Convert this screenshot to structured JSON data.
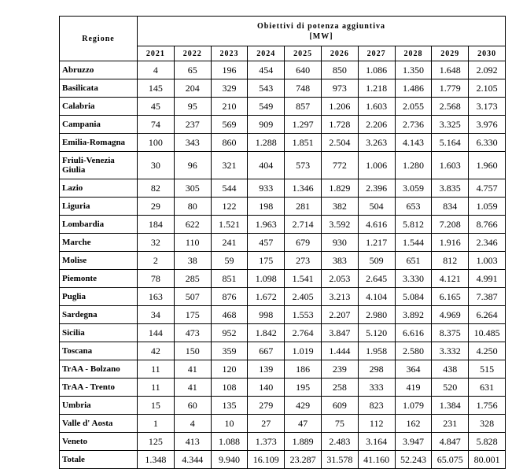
{
  "table": {
    "region_header": "Regione",
    "title": "Obiettivi di potenza aggiuntiva",
    "unit": "[MW]",
    "years": [
      "2021",
      "2022",
      "2023",
      "2024",
      "2025",
      "2026",
      "2027",
      "2028",
      "2029",
      "2030"
    ],
    "rows": [
      {
        "region": "Abruzzo",
        "values": [
          "4",
          "65",
          "196",
          "454",
          "640",
          "850",
          "1.086",
          "1.350",
          "1.648",
          "2.092"
        ]
      },
      {
        "region": "Basilicata",
        "values": [
          "145",
          "204",
          "329",
          "543",
          "748",
          "973",
          "1.218",
          "1.486",
          "1.779",
          "2.105"
        ]
      },
      {
        "region": "Calabria",
        "values": [
          "45",
          "95",
          "210",
          "549",
          "857",
          "1.206",
          "1.603",
          "2.055",
          "2.568",
          "3.173"
        ]
      },
      {
        "region": "Campania",
        "values": [
          "74",
          "237",
          "569",
          "909",
          "1.297",
          "1.728",
          "2.206",
          "2.736",
          "3.325",
          "3.976"
        ]
      },
      {
        "region": "Emilia-Romagna",
        "values": [
          "100",
          "343",
          "860",
          "1.288",
          "1.851",
          "2.504",
          "3.263",
          "4.143",
          "5.164",
          "6.330"
        ]
      },
      {
        "region": "Friuli-Venezia Giulia",
        "values": [
          "30",
          "96",
          "321",
          "404",
          "573",
          "772",
          "1.006",
          "1.280",
          "1.603",
          "1.960"
        ]
      },
      {
        "region": "Lazio",
        "values": [
          "82",
          "305",
          "544",
          "933",
          "1.346",
          "1.829",
          "2.396",
          "3.059",
          "3.835",
          "4.757"
        ]
      },
      {
        "region": "Liguria",
        "values": [
          "29",
          "80",
          "122",
          "198",
          "281",
          "382",
          "504",
          "653",
          "834",
          "1.059"
        ]
      },
      {
        "region": "Lombardia",
        "values": [
          "184",
          "622",
          "1.521",
          "1.963",
          "2.714",
          "3.592",
          "4.616",
          "5.812",
          "7.208",
          "8.766"
        ]
      },
      {
        "region": "Marche",
        "values": [
          "32",
          "110",
          "241",
          "457",
          "679",
          "930",
          "1.217",
          "1.544",
          "1.916",
          "2.346"
        ]
      },
      {
        "region": "Molise",
        "values": [
          "2",
          "38",
          "59",
          "175",
          "273",
          "383",
          "509",
          "651",
          "812",
          "1.003"
        ]
      },
      {
        "region": "Piemonte",
        "values": [
          "78",
          "285",
          "851",
          "1.098",
          "1.541",
          "2.053",
          "2.645",
          "3.330",
          "4.121",
          "4.991"
        ]
      },
      {
        "region": "Puglia",
        "values": [
          "163",
          "507",
          "876",
          "1.672",
          "2.405",
          "3.213",
          "4.104",
          "5.084",
          "6.165",
          "7.387"
        ]
      },
      {
        "region": "Sardegna",
        "values": [
          "34",
          "175",
          "468",
          "998",
          "1.553",
          "2.207",
          "2.980",
          "3.892",
          "4.969",
          "6.264"
        ]
      },
      {
        "region": "Sicilia",
        "values": [
          "144",
          "473",
          "952",
          "1.842",
          "2.764",
          "3.847",
          "5.120",
          "6.616",
          "8.375",
          "10.485"
        ]
      },
      {
        "region": "Toscana",
        "values": [
          "42",
          "150",
          "359",
          "667",
          "1.019",
          "1.444",
          "1.958",
          "2.580",
          "3.332",
          "4.250"
        ]
      },
      {
        "region": "TrAA - Bolzano",
        "values": [
          "11",
          "41",
          "120",
          "139",
          "186",
          "239",
          "298",
          "364",
          "438",
          "515"
        ]
      },
      {
        "region": "TrAA - Trento",
        "values": [
          "11",
          "41",
          "108",
          "140",
          "195",
          "258",
          "333",
          "419",
          "520",
          "631"
        ]
      },
      {
        "region": "Umbria",
        "values": [
          "15",
          "60",
          "135",
          "279",
          "429",
          "609",
          "823",
          "1.079",
          "1.384",
          "1.756"
        ]
      },
      {
        "region": "Valle d' Aosta",
        "values": [
          "1",
          "4",
          "10",
          "27",
          "47",
          "75",
          "112",
          "162",
          "231",
          "328"
        ]
      },
      {
        "region": "Veneto",
        "values": [
          "125",
          "413",
          "1.088",
          "1.373",
          "1.889",
          "2.483",
          "3.164",
          "3.947",
          "4.847",
          "5.828"
        ]
      },
      {
        "region": "Totale",
        "values": [
          "1.348",
          "4.344",
          "9.940",
          "16.109",
          "23.287",
          "31.578",
          "41.160",
          "52.243",
          "65.075",
          "80.001"
        ]
      }
    ]
  }
}
